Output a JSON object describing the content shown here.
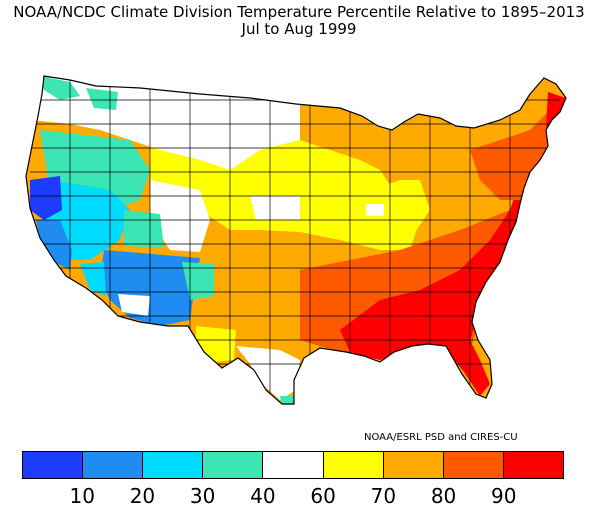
{
  "title": {
    "line1": "NOAA/NCDC Climate Division Temperature Percentile Relative to 1895–2013",
    "line2": "Jul to Aug 1999"
  },
  "credit": "NOAA/ESRL PSD and CIRES-CU",
  "legend": {
    "colors": [
      "#1e3cff",
      "#1e8cf0",
      "#00dcff",
      "#3ce6b4",
      "#ffffff",
      "#ffff00",
      "#ffaa00",
      "#ff5a00",
      "#ff0000"
    ],
    "ticks": [
      "10",
      "20",
      "30",
      "40",
      "60",
      "70",
      "80",
      "90"
    ]
  },
  "map": {
    "region": "contiguous-united-states",
    "color_classes": {
      "lt10": "#1e3cff",
      "10-20": "#1e8cf0",
      "20-30": "#00dcff",
      "30-40": "#3ce6b4",
      "40-60": "#ffffff",
      "60-70": "#ffff00",
      "70-80": "#ffaa00",
      "80-90": "#ff5a00",
      "gt90": "#ff0000"
    }
  }
}
